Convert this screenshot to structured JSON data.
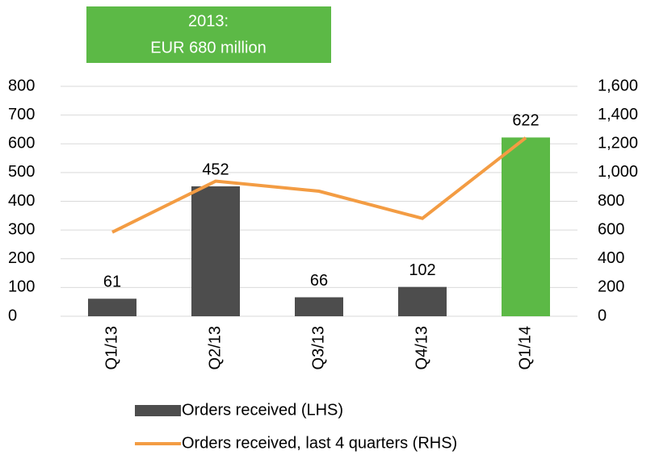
{
  "chart_data": {
    "type": "bar",
    "annotation": [
      "2013:",
      "EUR 680 million"
    ],
    "annotation_color": "#5cb946",
    "categories": [
      "Q1/13",
      "Q2/13",
      "Q3/13",
      "Q4/13",
      "Q1/14"
    ],
    "series": [
      {
        "name": "Orders received (LHS)",
        "type": "bar",
        "color": "#4d4d4d",
        "colors": [
          "#4d4d4d",
          "#4d4d4d",
          "#4d4d4d",
          "#4d4d4d",
          "#5cb946"
        ],
        "values": [
          61,
          452,
          66,
          102,
          622
        ]
      },
      {
        "name": "Orders received, last 4 quarters (RHS)",
        "type": "line",
        "axis": "y2",
        "color": "#f39c43",
        "values": [
          585,
          940,
          870,
          681,
          1242
        ]
      }
    ],
    "ylim": [
      0,
      800
    ],
    "yticks": [
      0,
      100,
      200,
      300,
      400,
      500,
      600,
      700,
      800
    ],
    "y2lim": [
      0,
      1600
    ],
    "y2ticks": [
      0,
      200,
      400,
      600,
      800,
      {
        "value": 1000,
        "label": "1,000"
      },
      {
        "value": 1200,
        "label": "1,200"
      },
      {
        "value": 1400,
        "label": "1,400"
      },
      {
        "value": 1600,
        "label": "1,600"
      }
    ],
    "grid": true
  }
}
